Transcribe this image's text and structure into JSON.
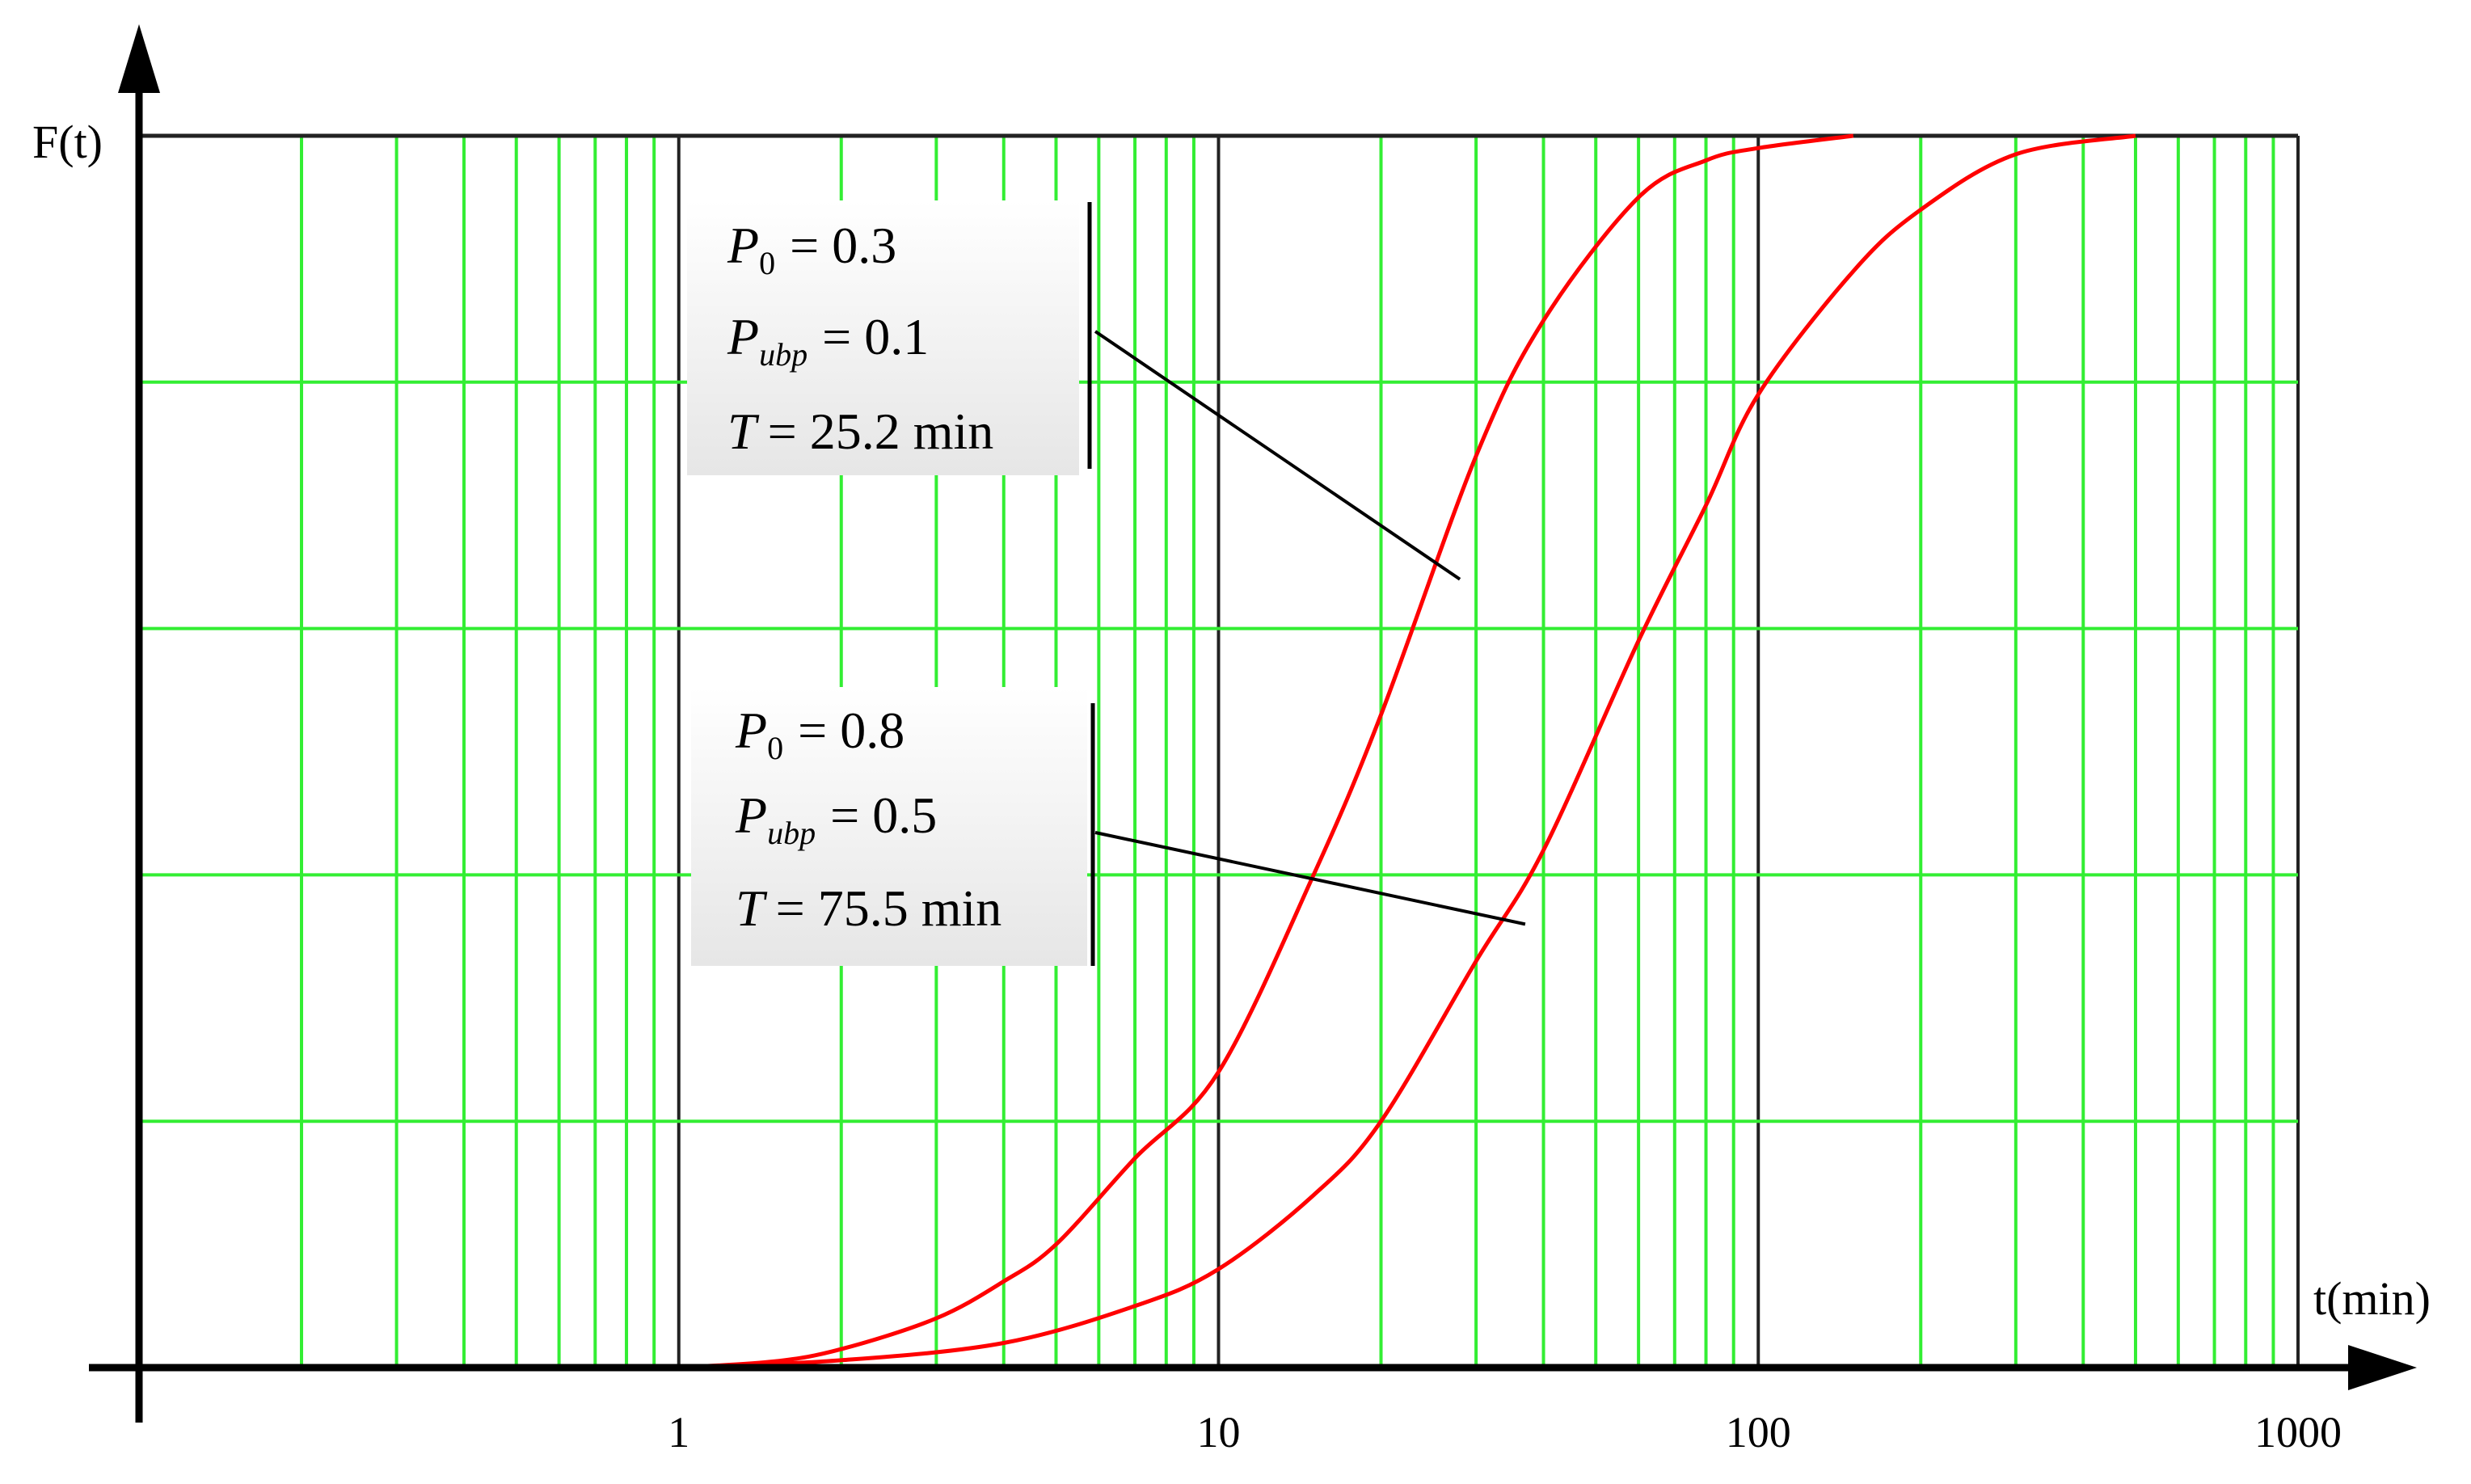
{
  "chart_data": {
    "type": "line",
    "xscale": "log",
    "xlabel": "t(min)",
    "ylabel": "F(t)",
    "xlim": [
      0.1,
      1000
    ],
    "ylim": [
      0,
      1
    ],
    "x_tick_labels": [
      "1",
      "10",
      "100",
      "1000"
    ],
    "x_ticks": [
      1,
      10,
      100,
      1000
    ],
    "grid": true,
    "series": [
      {
        "color": "#ff0000",
        "x": [
          1,
          1.5,
          2,
          3,
          4,
          5,
          7,
          10,
          15,
          20,
          30,
          40,
          60,
          80,
          100,
          150
        ],
        "y": [
          0.0,
          0.005,
          0.015,
          0.04,
          0.07,
          0.1,
          0.17,
          0.24,
          0.4,
          0.53,
          0.74,
          0.85,
          0.95,
          0.98,
          0.99,
          1.0
        ]
      },
      {
        "color": "#ff0000",
        "x": [
          1,
          2,
          4,
          7,
          10,
          15,
          20,
          30,
          40,
          60,
          80,
          100,
          150,
          200,
          300,
          500
        ],
        "y": [
          0.0,
          0.006,
          0.02,
          0.05,
          0.08,
          0.14,
          0.2,
          0.33,
          0.42,
          0.59,
          0.7,
          0.79,
          0.89,
          0.94,
          0.985,
          1.0
        ]
      }
    ],
    "annotations": [
      {
        "p0_label": "P",
        "p0_sub": "0",
        "p0_value": "= 0.3",
        "pubp_label": "P",
        "pubp_sub": "ubp",
        "pubp_value": "= 0.1",
        "t_label": "T",
        "t_value": "= 25.2 min",
        "points_to_x": 28,
        "points_to_y": 0.64
      },
      {
        "p0_label": "P",
        "p0_sub": "0",
        "p0_value": "= 0.8",
        "pubp_label": "P",
        "pubp_sub": "ubp",
        "pubp_value": "= 0.5",
        "t_label": "T",
        "t_value": "= 75.5 min",
        "points_to_x": 37,
        "points_to_y": 0.36
      }
    ],
    "colors": {
      "grid": "#33ee33",
      "major_grid": "#222222",
      "curve": "#ff0000",
      "annotation_bg": "#eeeeee"
    }
  }
}
